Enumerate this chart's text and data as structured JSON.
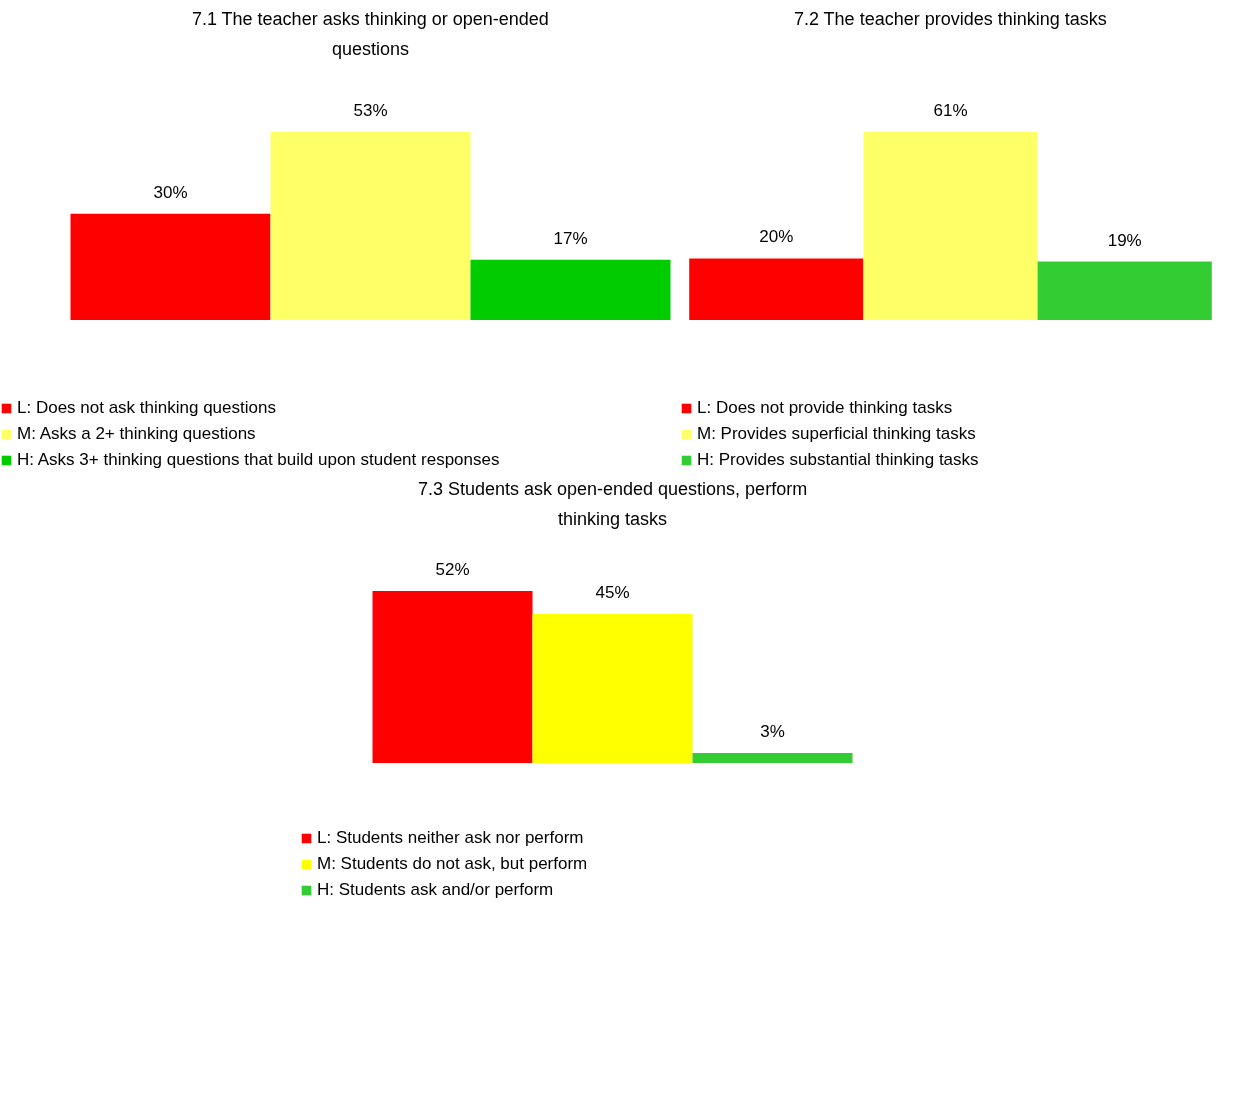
{
  "chart_data": [
    {
      "type": "bar",
      "title": "7.1 The teacher asks thinking or open-ended questions",
      "categories": [
        null
      ],
      "legend": "bottom",
      "series": [
        {
          "name": "L: Does not ask thinking questions",
          "color": "#ff0000",
          "values": [
            30
          ],
          "value_labels": [
            "30%"
          ]
        },
        {
          "name": "M: Asks a 2+ thinking questions",
          "color": "#ffff66",
          "values": [
            53
          ],
          "value_labels": [
            "53%"
          ]
        },
        {
          "name": "H: Asks 3+ thinking questions that build upon student responses",
          "color": "#00cc00",
          "values": [
            17
          ],
          "value_labels": [
            "17%"
          ]
        }
      ]
    },
    {
      "type": "bar",
      "title": "7.2 The teacher provides thinking tasks",
      "categories": [
        null
      ],
      "legend": "bottom",
      "series": [
        {
          "name": "L: Does not provide thinking tasks",
          "color": "#ff0000",
          "values": [
            20
          ],
          "value_labels": [
            "20%"
          ]
        },
        {
          "name": "M: Provides superficial thinking tasks",
          "color": "#ffff66",
          "values": [
            61
          ],
          "value_labels": [
            "61%"
          ]
        },
        {
          "name": "H: Provides substantial thinking tasks",
          "color": "#33cc33",
          "values": [
            19
          ],
          "value_labels": [
            "19%"
          ]
        }
      ]
    },
    {
      "type": "bar",
      "title": "7.3 Students ask open-ended questions, perform thinking tasks",
      "categories": [
        null
      ],
      "legend": "bottom",
      "series": [
        {
          "name": "L: Students neither ask nor perform",
          "color": "#ff0000",
          "values": [
            52
          ],
          "value_labels": [
            "52%"
          ]
        },
        {
          "name": "M: Students do not ask, but perform",
          "color": "#ffff00",
          "values": [
            45
          ],
          "value_labels": [
            "45%"
          ]
        },
        {
          "name": "H: Students ask and/or perform",
          "color": "#33cc33",
          "values": [
            3
          ],
          "value_labels": [
            "3%"
          ]
        }
      ]
    }
  ]
}
